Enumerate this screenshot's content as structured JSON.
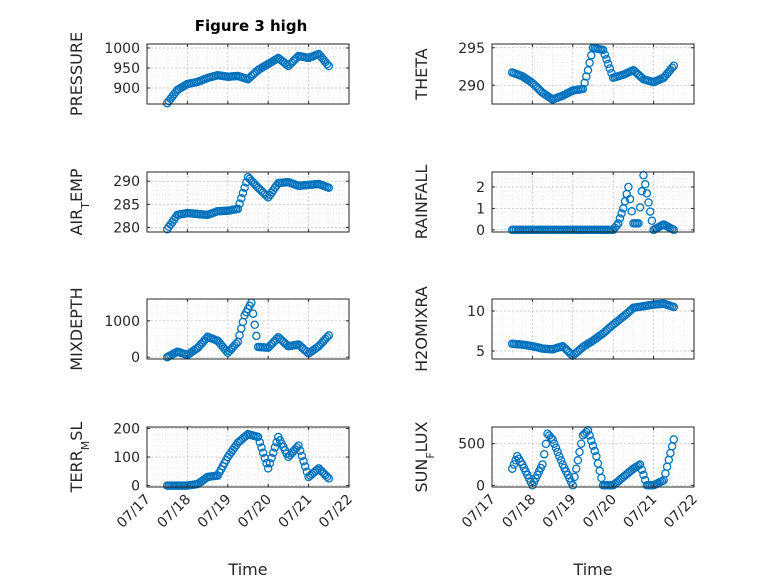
{
  "figure_title": "Figure 3 high",
  "colors": {
    "marker": "#0072BD",
    "axis": "#262626",
    "grid": "#bfbfbf",
    "minor_grid": "#dcdcdc"
  },
  "chart_data": [
    {
      "type": "scatter",
      "name_id": "pressure",
      "ylabel": "PRESSURE",
      "xlabel": "",
      "xlim": [
        "07/17",
        "07/22"
      ],
      "ylim": [
        860,
        1010
      ],
      "yticks": [
        900,
        950,
        1000
      ],
      "ytick_labels": [
        "900",
        "950",
        "1000"
      ],
      "x": [
        "07/17 12:00",
        "07/17 18:00",
        "07/18 00:00",
        "07/18 06:00",
        "07/18 12:00",
        "07/18 18:00",
        "07/19 00:00",
        "07/19 06:00",
        "07/19 12:00",
        "07/19 18:00",
        "07/20 00:00",
        "07/20 06:00",
        "07/20 12:00",
        "07/20 18:00",
        "07/21 00:00",
        "07/21 06:00",
        "07/21 12:00"
      ],
      "y": [
        862,
        895,
        910,
        915,
        925,
        932,
        928,
        930,
        922,
        945,
        960,
        975,
        955,
        980,
        975,
        985,
        955
      ]
    },
    {
      "type": "scatter",
      "name_id": "theta",
      "ylabel": "THETA",
      "xlabel": "",
      "xlim": [
        "07/17",
        "07/22"
      ],
      "ylim": [
        287.5,
        295.5
      ],
      "yticks": [
        290,
        295
      ],
      "ytick_labels": [
        "290",
        "295"
      ],
      "x": [
        "07/17 12:00",
        "07/17 18:00",
        "07/18 00:00",
        "07/18 06:00",
        "07/18 12:00",
        "07/18 18:00",
        "07/19 00:00",
        "07/19 06:00",
        "07/19 09:00",
        "07/19 12:00",
        "07/19 18:00",
        "07/20 00:00",
        "07/20 06:00",
        "07/20 12:00",
        "07/20 18:00",
        "07/21 00:00",
        "07/21 06:00",
        "07/21 12:00"
      ],
      "y": [
        291.7,
        291.2,
        290.3,
        289.0,
        288.1,
        288.6,
        289.3,
        289.5,
        292.0,
        295.0,
        294.7,
        291.0,
        291.4,
        292.0,
        290.8,
        290.4,
        291.0,
        292.6
      ]
    },
    {
      "type": "scatter",
      "name_id": "air_temp",
      "ylabel": "AIR_TEMP",
      "xlabel": "",
      "xlim": [
        "07/17",
        "07/22"
      ],
      "ylim": [
        279,
        292
      ],
      "yticks": [
        280,
        285,
        290
      ],
      "ytick_labels": [
        "280",
        "285",
        "290"
      ],
      "x": [
        "07/17 12:00",
        "07/17 18:00",
        "07/18 00:00",
        "07/18 06:00",
        "07/18 12:00",
        "07/18 18:00",
        "07/19 00:00",
        "07/19 06:00",
        "07/19 12:00",
        "07/19 18:00",
        "07/20 00:00",
        "07/20 06:00",
        "07/20 12:00",
        "07/20 18:00",
        "07/21 00:00",
        "07/21 06:00",
        "07/21 12:00"
      ],
      "y": [
        279.6,
        282.7,
        283.1,
        282.9,
        282.7,
        283.5,
        283.6,
        284.0,
        290.9,
        288.6,
        286.5,
        289.6,
        289.8,
        289.0,
        289.2,
        289.4,
        288.6
      ]
    },
    {
      "type": "scatter",
      "name_id": "rainfall",
      "ylabel": "RAINFALL",
      "xlabel": "",
      "xlim": [
        "07/17",
        "07/22"
      ],
      "ylim": [
        -0.1,
        2.7
      ],
      "yticks": [
        0,
        1,
        2
      ],
      "ytick_labels": [
        "0",
        "1",
        "2"
      ],
      "x": [
        "07/17 12:00",
        "07/18 00:00",
        "07/18 12:00",
        "07/19 00:00",
        "07/19 12:00",
        "07/20 00:00",
        "07/20 03:00",
        "07/20 06:00",
        "07/20 09:00",
        "07/20 12:00",
        "07/20 15:00",
        "07/20 18:00",
        "07/21 00:00",
        "07/21 06:00",
        "07/21 12:00"
      ],
      "y": [
        0,
        0,
        0,
        0,
        0,
        0,
        0.3,
        1.0,
        2.0,
        0.3,
        0.3,
        2.55,
        0,
        0.25,
        0
      ]
    },
    {
      "type": "scatter",
      "name_id": "mixdepth",
      "ylabel": "MIXDEPTH",
      "xlabel": "",
      "xlim": [
        "07/17",
        "07/22"
      ],
      "ylim": [
        -50,
        1600
      ],
      "yticks": [
        0,
        1000
      ],
      "ytick_labels": [
        "0",
        "1000"
      ],
      "x": [
        "07/17 12:00",
        "07/17 18:00",
        "07/18 00:00",
        "07/18 06:00",
        "07/18 12:00",
        "07/18 18:00",
        "07/19 00:00",
        "07/19 06:00",
        "07/19 10:00",
        "07/19 14:00",
        "07/19 18:00",
        "07/20 00:00",
        "07/20 06:00",
        "07/20 12:00",
        "07/20 18:00",
        "07/21 00:00",
        "07/21 06:00",
        "07/21 12:00"
      ],
      "y": [
        0,
        150,
        60,
        250,
        560,
        450,
        120,
        420,
        1150,
        1500,
        280,
        260,
        550,
        300,
        350,
        100,
        300,
        600
      ]
    },
    {
      "type": "scatter",
      "name_id": "h2omixra",
      "ylabel": "H2OMIXRA",
      "xlabel": "",
      "xlim": [
        "07/17",
        "07/22"
      ],
      "ylim": [
        4,
        11.5
      ],
      "yticks": [
        5,
        10
      ],
      "ytick_labels": [
        "5",
        "10"
      ],
      "x": [
        "07/17 12:00",
        "07/17 18:00",
        "07/18 00:00",
        "07/18 06:00",
        "07/18 12:00",
        "07/18 18:00",
        "07/19 00:00",
        "07/19 06:00",
        "07/19 12:00",
        "07/19 18:00",
        "07/20 00:00",
        "07/20 06:00",
        "07/20 12:00",
        "07/20 18:00",
        "07/21 00:00",
        "07/21 06:00",
        "07/21 12:00"
      ],
      "y": [
        5.9,
        5.8,
        5.6,
        5.3,
        5.2,
        5.6,
        4.4,
        5.5,
        6.3,
        7.2,
        8.3,
        9.3,
        10.4,
        10.6,
        10.8,
        10.9,
        10.5
      ]
    },
    {
      "type": "scatter",
      "name_id": "terr_msl",
      "ylabel": "TERR_MSL",
      "xlabel": "Time",
      "xlim": [
        "07/17",
        "07/22"
      ],
      "ylim": [
        -5,
        205
      ],
      "yticks": [
        0,
        100,
        200
      ],
      "ytick_labels": [
        "0",
        "100",
        "200"
      ],
      "xticks": [
        "07/17",
        "07/18",
        "07/19",
        "07/20",
        "07/21",
        "07/22"
      ],
      "x": [
        "07/17 12:00",
        "07/17 18:00",
        "07/18 00:00",
        "07/18 06:00",
        "07/18 12:00",
        "07/18 18:00",
        "07/19 00:00",
        "07/19 06:00",
        "07/19 12:00",
        "07/19 18:00",
        "07/20 00:00",
        "07/20 06:00",
        "07/20 12:00",
        "07/20 18:00",
        "07/21 00:00",
        "07/21 06:00",
        "07/21 12:00"
      ],
      "y": [
        0,
        0,
        0,
        5,
        30,
        35,
        100,
        150,
        180,
        170,
        60,
        170,
        100,
        140,
        30,
        60,
        25
      ]
    },
    {
      "type": "scatter",
      "name_id": "sun_flux",
      "ylabel": "SUN_FLUX",
      "xlabel": "Time",
      "xlim": [
        "07/17",
        "07/22"
      ],
      "ylim": [
        -20,
        700
      ],
      "yticks": [
        0,
        500
      ],
      "ytick_labels": [
        "0",
        "500"
      ],
      "xticks": [
        "07/17",
        "07/18",
        "07/19",
        "07/20",
        "07/21",
        "07/22"
      ],
      "x": [
        "07/17 12:00",
        "07/17 15:00",
        "07/17 18:00",
        "07/18 00:00",
        "07/18 06:00",
        "07/18 09:00",
        "07/18 12:00",
        "07/18 18:00",
        "07/19 00:00",
        "07/19 06:00",
        "07/19 09:00",
        "07/19 14:00",
        "07/19 18:00",
        "07/20 00:00",
        "07/20 06:00",
        "07/20 12:00",
        "07/20 16:00",
        "07/20 20:00",
        "07/21 00:00",
        "07/21 06:00",
        "07/21 12:00"
      ],
      "y": [
        200,
        350,
        250,
        0,
        250,
        620,
        550,
        250,
        0,
        600,
        660,
        350,
        0,
        0,
        100,
        200,
        250,
        0,
        0,
        60,
        550
      ]
    }
  ]
}
